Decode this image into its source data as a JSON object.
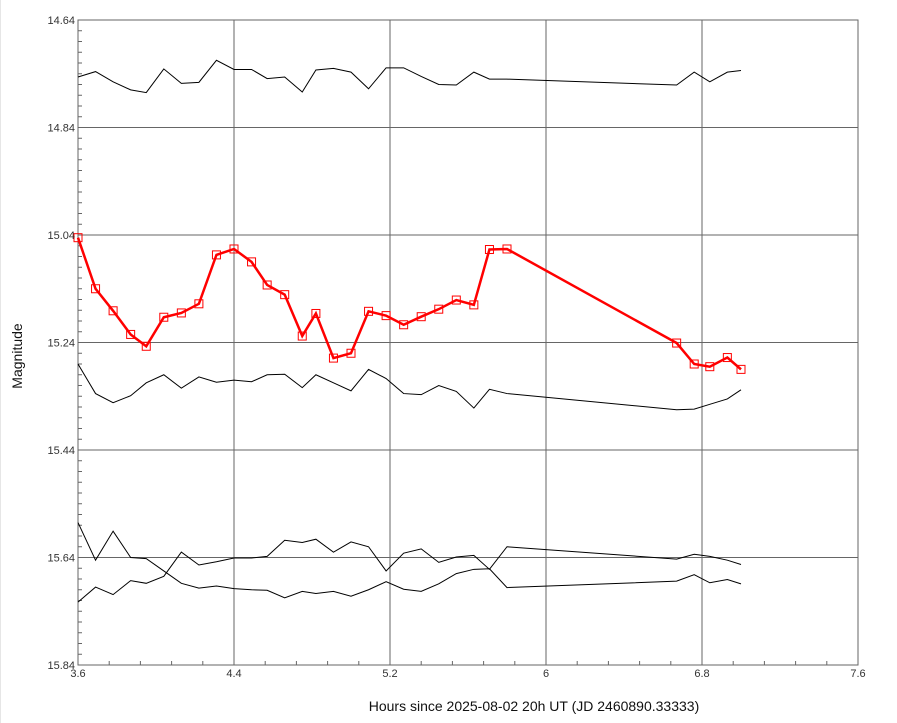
{
  "chart_data": {
    "type": "line",
    "title": "",
    "xlabel": "Hours since 2025-08-02 20h UT (JD 2460890.33333)",
    "ylabel": "Magnitude",
    "xlim": [
      3.6,
      7.6
    ],
    "ylim": [
      14.64,
      15.84
    ],
    "y_inverted": true,
    "grid": true,
    "x_ticks": [
      "3.6",
      "4.4",
      "5.2",
      "6",
      "6.8",
      "7.6"
    ],
    "y_ticks": [
      "14.64",
      "14.84",
      "15.04",
      "15.24",
      "15.44",
      "15.64",
      "15.84"
    ],
    "x_tick_values": [
      3.6,
      4.4,
      5.2,
      6.0,
      6.8,
      7.6
    ],
    "y_tick_values": [
      14.64,
      14.84,
      15.04,
      15.24,
      15.44,
      15.64,
      15.84
    ],
    "x": [
      3.6,
      3.69,
      3.78,
      3.87,
      3.95,
      4.04,
      4.13,
      4.22,
      4.31,
      4.4,
      4.49,
      4.57,
      4.66,
      4.75,
      4.82,
      4.91,
      5.0,
      5.09,
      5.18,
      5.27,
      5.36,
      5.45,
      5.54,
      5.63,
      5.71,
      5.8,
      6.67,
      6.76,
      6.84,
      6.93,
      7.0
    ],
    "series": [
      {
        "color": "#ff0000",
        "marker": "square",
        "values": [
          15.045,
          15.14,
          15.181,
          15.225,
          15.247,
          15.193,
          15.185,
          15.168,
          15.077,
          15.066,
          15.09,
          15.133,
          15.151,
          15.228,
          15.186,
          15.269,
          15.26,
          15.182,
          15.19,
          15.207,
          15.192,
          15.178,
          15.161,
          15.17,
          15.067,
          15.066,
          15.241,
          15.28,
          15.285,
          15.268,
          15.29
        ]
      },
      {
        "color": "#000000",
        "marker": "none",
        "values": [
          14.746,
          14.736,
          14.755,
          14.77,
          14.775,
          14.731,
          14.758,
          14.756,
          14.715,
          14.732,
          14.732,
          14.749,
          14.746,
          14.774,
          14.733,
          14.73,
          14.737,
          14.768,
          14.729,
          14.729,
          14.745,
          14.76,
          14.761,
          14.737,
          14.75,
          14.75,
          14.761,
          14.737,
          14.755,
          14.737,
          14.734
        ]
      },
      {
        "color": "#000000",
        "marker": "none",
        "values": [
          15.28,
          15.335,
          15.352,
          15.339,
          15.315,
          15.3,
          15.325,
          15.304,
          15.314,
          15.31,
          15.313,
          15.3,
          15.299,
          15.324,
          15.3,
          15.315,
          15.33,
          15.29,
          15.307,
          15.335,
          15.337,
          15.32,
          15.331,
          15.362,
          15.327,
          15.335,
          15.365,
          15.364,
          15.355,
          15.345,
          15.328
        ]
      },
      {
        "color": "#000000",
        "marker": "none",
        "values": [
          15.575,
          15.645,
          15.591,
          15.64,
          15.642,
          15.665,
          15.688,
          15.697,
          15.693,
          15.698,
          15.7,
          15.701,
          15.715,
          15.703,
          15.707,
          15.703,
          15.712,
          15.7,
          15.685,
          15.699,
          15.703,
          15.689,
          15.67,
          15.662,
          15.661,
          15.696,
          15.684,
          15.672,
          15.687,
          15.681,
          15.689
        ]
      },
      {
        "color": "#000000",
        "marker": "none",
        "values": [
          15.723,
          15.695,
          15.709,
          15.683,
          15.688,
          15.675,
          15.63,
          15.654,
          15.648,
          15.641,
          15.641,
          15.638,
          15.608,
          15.612,
          15.606,
          15.63,
          15.611,
          15.62,
          15.665,
          15.632,
          15.624,
          15.649,
          15.639,
          15.636,
          15.662,
          15.62,
          15.643,
          15.634,
          15.638,
          15.645,
          15.653
        ]
      }
    ]
  }
}
